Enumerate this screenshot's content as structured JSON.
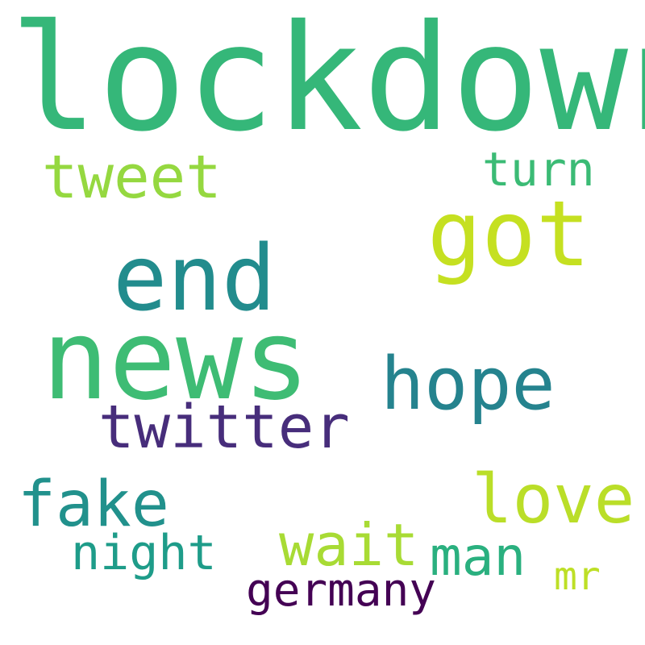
{
  "wordcloud": {
    "background": "#ffffff",
    "words": [
      {
        "key": "lockdown",
        "text": "lockdown",
        "color": "#35b779"
      },
      {
        "key": "news",
        "text": "news",
        "color": "#3ebc74"
      },
      {
        "key": "end",
        "text": "end",
        "color": "#228c8d"
      },
      {
        "key": "got",
        "text": "got",
        "color": "#c5e021"
      },
      {
        "key": "hope",
        "text": "hope",
        "color": "#25838e"
      },
      {
        "key": "tweet",
        "text": "tweet",
        "color": "#95d840"
      },
      {
        "key": "twitter",
        "text": "twitter",
        "color": "#472d7b"
      },
      {
        "key": "fake",
        "text": "fake",
        "color": "#21918c"
      },
      {
        "key": "love",
        "text": "love",
        "color": "#bade28"
      },
      {
        "key": "wait",
        "text": "wait",
        "color": "#a8db34"
      },
      {
        "key": "man",
        "text": "man",
        "color": "#2ab07f"
      },
      {
        "key": "turn",
        "text": "turn",
        "color": "#3bbb75"
      },
      {
        "key": "night",
        "text": "night",
        "color": "#1e9c89"
      },
      {
        "key": "germany",
        "text": "germany",
        "color": "#440154"
      },
      {
        "key": "mr",
        "text": "mr",
        "color": "#bddf26"
      }
    ]
  }
}
